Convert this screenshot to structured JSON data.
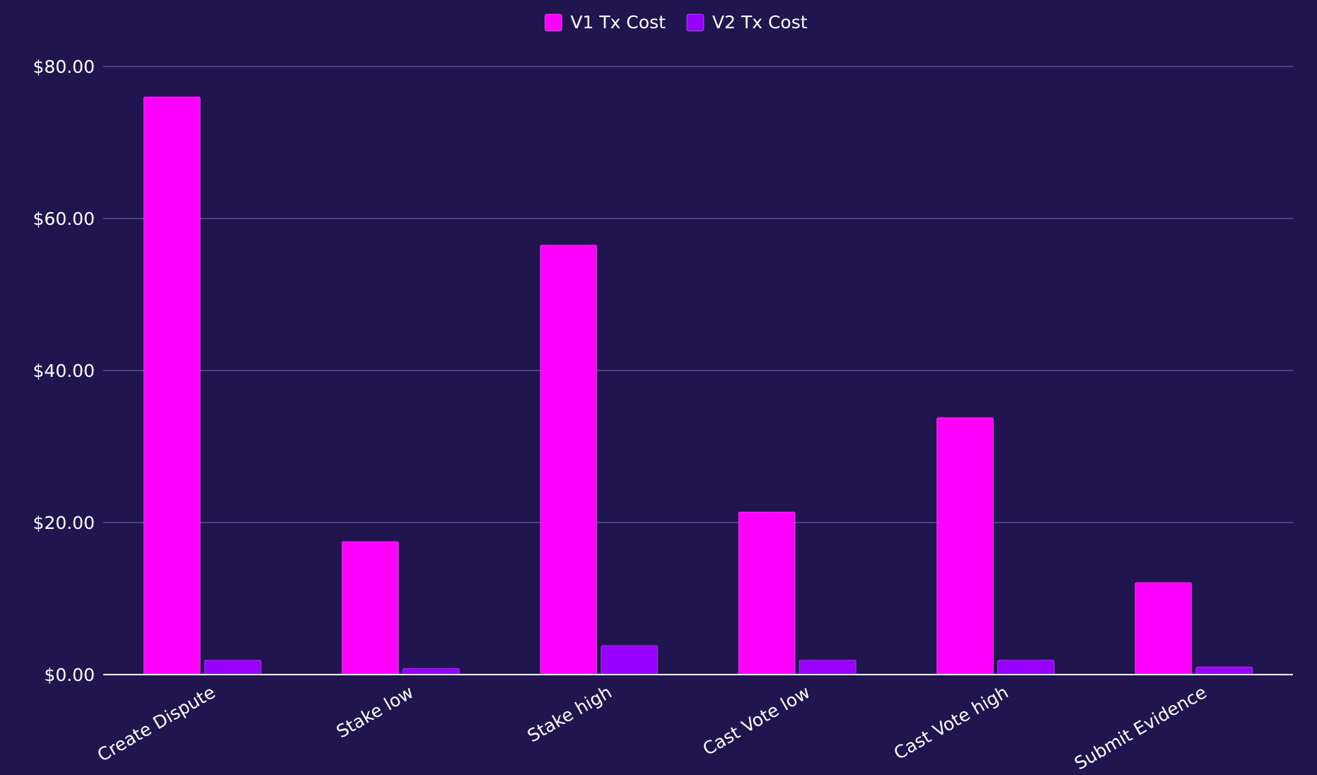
{
  "chart_data": {
    "type": "bar",
    "categories": [
      "Create Dispute",
      "Stake low",
      "Stake high",
      "Cast Vote low",
      "Cast Vote high",
      "Submit Evidence"
    ],
    "series": [
      {
        "name": "V1 Tx Cost",
        "color": "#ff00ff",
        "values": [
          76.0,
          17.5,
          56.5,
          21.4,
          33.8,
          12.1
        ]
      },
      {
        "name": "V2 Tx Cost",
        "color": "#9900ff",
        "values": [
          1.9,
          0.8,
          3.8,
          1.9,
          1.9,
          1.0
        ]
      }
    ],
    "yticks": [
      0,
      20,
      40,
      60,
      80
    ],
    "ytick_labels": [
      "$0.00",
      "$20.00",
      "$40.00",
      "$60.00",
      "$80.00"
    ],
    "ylim": [
      0,
      80
    ],
    "grid": true,
    "legend_position": "top-center",
    "background_color": "#20154f"
  }
}
